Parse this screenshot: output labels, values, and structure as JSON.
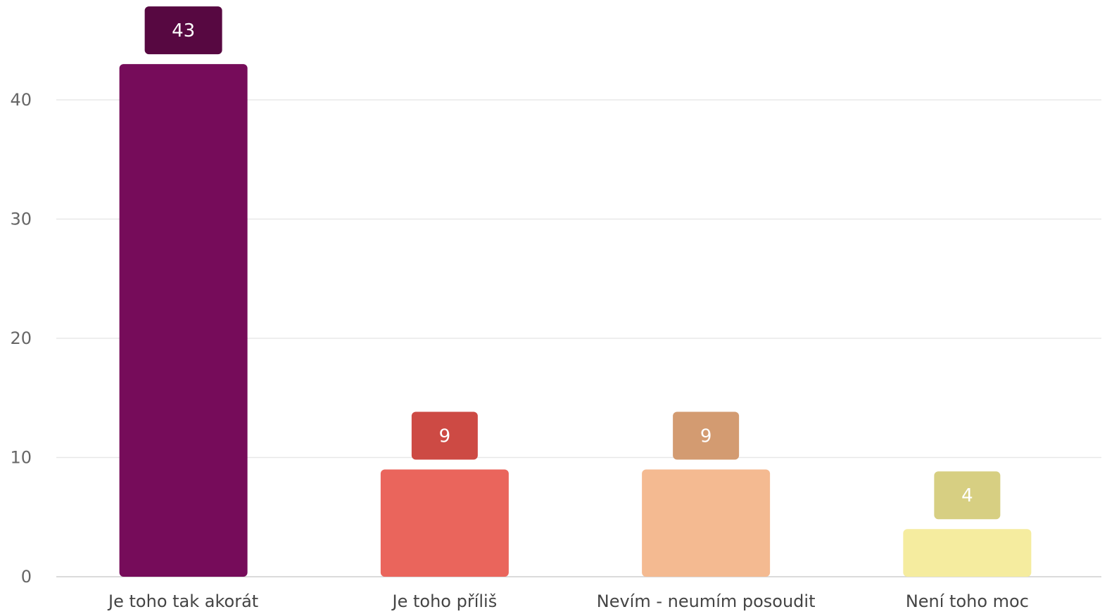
{
  "chart_data": {
    "type": "bar",
    "categories": [
      "Je toho tak akorát",
      "Je toho příliš",
      "Nevím - neumím posoudit",
      "Není toho moc"
    ],
    "values": [
      43,
      9,
      9,
      4
    ],
    "bar_colors": [
      "#760c5a",
      "#ea655c",
      "#f4ba91",
      "#f5ec9f"
    ],
    "label_colors": [
      "#570841",
      "#cd4a44",
      "#d39b71",
      "#d7cf82"
    ],
    "yticks": [
      0,
      10,
      20,
      30,
      40
    ],
    "ylim": [
      0,
      45
    ],
    "grid": true,
    "legend": "none"
  }
}
